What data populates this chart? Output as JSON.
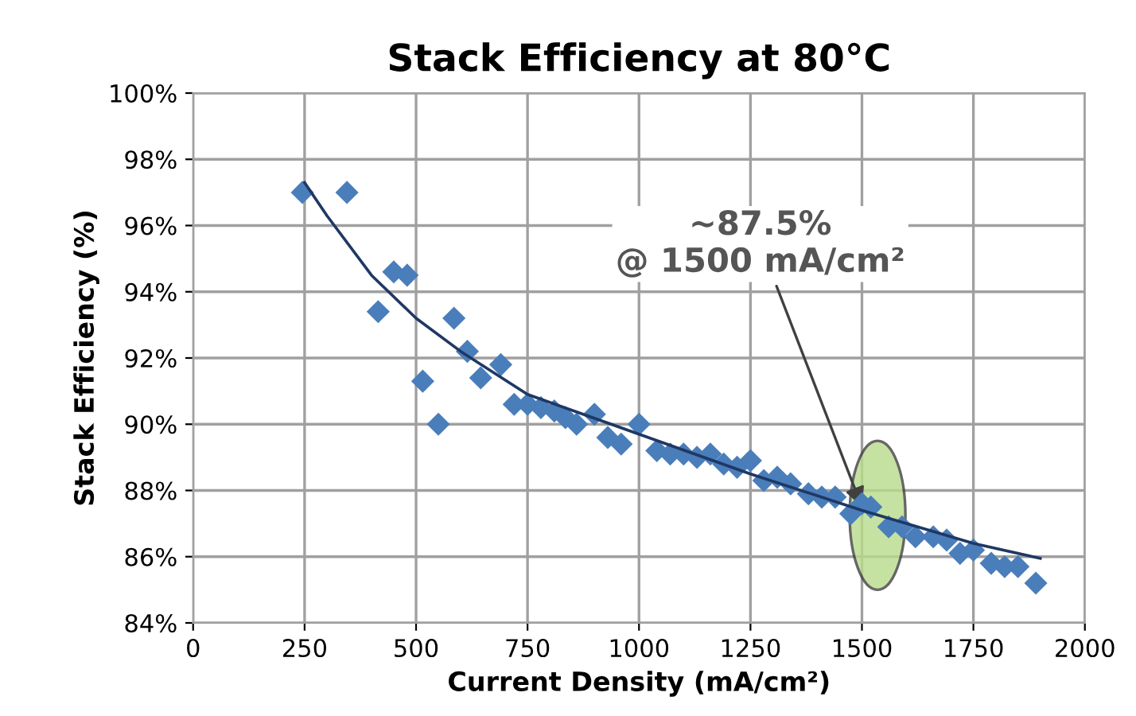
{
  "chart_data": {
    "type": "scatter",
    "title": "Stack Efficiency at 80°C",
    "xlabel": "Current Density (mA/cm²)",
    "ylabel": "Stack Efficiency (%)",
    "xlim": [
      0,
      2000
    ],
    "xticks": [
      0,
      250,
      500,
      750,
      1000,
      1250,
      1500,
      1750,
      2000
    ],
    "ylim": [
      84,
      100
    ],
    "yticks": [
      {
        "value": 84,
        "label": "84%"
      },
      {
        "value": 86,
        "label": "86%"
      },
      {
        "value": 88,
        "label": "88%"
      },
      {
        "value": 90,
        "label": "90%"
      },
      {
        "value": 92,
        "label": "92%"
      },
      {
        "value": 94,
        "label": "94%"
      },
      {
        "value": 96,
        "label": "96%"
      },
      {
        "value": 98,
        "label": "98%"
      },
      {
        "value": 100,
        "label": "100%"
      }
    ],
    "grid": true,
    "legend": false,
    "marker": "diamond",
    "series": [
      {
        "color": "#4a7ebb",
        "x": [
          245,
          345,
          415,
          450,
          480,
          515,
          550,
          585,
          615,
          645,
          690,
          720,
          750,
          780,
          810,
          835,
          860,
          900,
          930,
          960,
          1000,
          1040,
          1070,
          1100,
          1130,
          1160,
          1190,
          1220,
          1250,
          1280,
          1310,
          1340,
          1380,
          1410,
          1440,
          1475,
          1500,
          1520,
          1560,
          1590,
          1620,
          1660,
          1690,
          1720,
          1750,
          1790,
          1820,
          1850,
          1890
        ],
        "values": [
          97.0,
          97.0,
          93.4,
          94.6,
          94.5,
          91.3,
          90.0,
          93.2,
          92.2,
          91.4,
          91.8,
          90.6,
          90.6,
          90.5,
          90.4,
          90.2,
          90.0,
          90.3,
          89.6,
          89.4,
          90.0,
          89.2,
          89.1,
          89.1,
          89.0,
          89.1,
          88.8,
          88.7,
          88.9,
          88.3,
          88.4,
          88.2,
          87.9,
          87.8,
          87.8,
          87.3,
          87.6,
          87.5,
          86.9,
          86.9,
          86.6,
          86.6,
          86.5,
          86.1,
          86.2,
          85.8,
          85.7,
          85.7,
          85.2
        ]
      },
      {
        "type": "line",
        "color": "#1f3864",
        "marker": "none",
        "x": [
          250,
          300,
          400,
          500,
          600,
          750,
          1000,
          1250,
          1500,
          1750,
          1900
        ],
        "values": [
          97.3,
          96.3,
          94.5,
          93.2,
          92.2,
          90.9,
          89.7,
          88.5,
          87.4,
          86.4,
          85.95
        ]
      }
    ],
    "annotations": [
      {
        "text": "~87.5%\n@ 1500 mA/cm²",
        "x": 1500,
        "y": 87.5
      }
    ]
  }
}
